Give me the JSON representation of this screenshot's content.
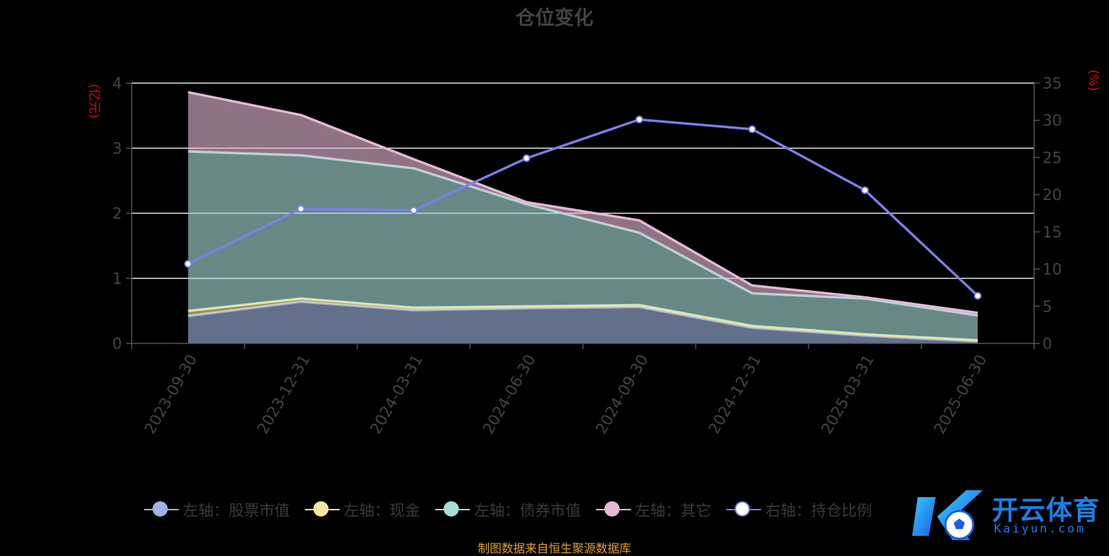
{
  "chart_data": {
    "type": "area",
    "title": "仓位变化",
    "categories": [
      "2023-09-30",
      "2023-12-31",
      "2024-03-31",
      "2024-06-30",
      "2024-09-30",
      "2024-12-31",
      "2025-03-31",
      "2025-06-30"
    ],
    "left_axis": {
      "label": "(亿元)",
      "ylim": [
        0,
        4
      ],
      "ticks": [
        "0",
        "1",
        "2",
        "3",
        "4"
      ]
    },
    "right_axis": {
      "label": "(%)",
      "ylim": [
        0,
        35
      ],
      "ticks": [
        "0",
        "5",
        "10",
        "15",
        "20",
        "25",
        "30",
        "35"
      ]
    },
    "stacked": true,
    "grid": true,
    "legend_position": "bottom",
    "series": [
      {
        "name": "左轴：股票市值",
        "axis": "left",
        "type": "area",
        "color": "#9fb4e0",
        "values": [
          0.42,
          0.64,
          0.51,
          0.54,
          0.56,
          0.24,
          0.12,
          0.03
        ]
      },
      {
        "name": "左轴：现金",
        "axis": "left",
        "type": "area",
        "color": "#f5e6a0",
        "values": [
          0.08,
          0.05,
          0.04,
          0.03,
          0.03,
          0.03,
          0.02,
          0.02
        ]
      },
      {
        "name": "左轴：债券市值",
        "axis": "left",
        "type": "area",
        "color": "#a8dcd9",
        "values": [
          2.45,
          2.2,
          2.14,
          1.57,
          1.11,
          0.5,
          0.55,
          0.38
        ]
      },
      {
        "name": "左轴：其它",
        "axis": "left",
        "type": "area",
        "color": "#e6b8d8",
        "values": [
          0.91,
          0.62,
          0.14,
          0.03,
          0.19,
          0.12,
          0.02,
          0.04
        ]
      },
      {
        "name": "右轴：持仓比例",
        "axis": "right",
        "type": "line",
        "color": "#7b7fe8",
        "values": [
          10.7,
          18.1,
          17.9,
          24.9,
          30.1,
          28.8,
          20.6,
          6.4
        ]
      }
    ]
  },
  "source_note": "制图数据来自恒生聚源数据库",
  "watermark": {
    "text": "开云体育",
    "sub": "Kaiyun.com"
  }
}
